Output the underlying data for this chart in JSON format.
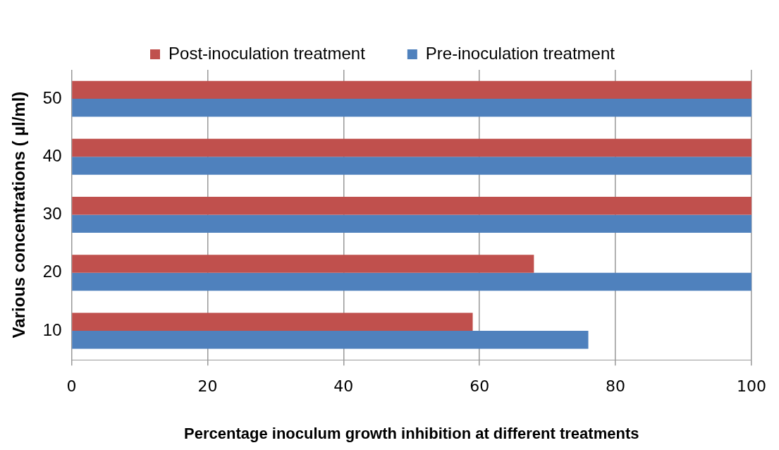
{
  "chart_data": {
    "type": "bar",
    "orientation": "horizontal",
    "xlabel": "Percentage inoculum growth inhibition at different treatments",
    "ylabel": "Various concentrations ( µl/ml)",
    "categories": [
      "50",
      "40",
      "30",
      "20",
      "10"
    ],
    "series": [
      {
        "name": "Post-inoculation treatment",
        "color": "#c0504d",
        "values": [
          100,
          100,
          100,
          68,
          59
        ]
      },
      {
        "name": "Pre-inoculation treatment",
        "color": "#4f81bd",
        "values": [
          100,
          100,
          100,
          100,
          76
        ]
      }
    ],
    "xlim": [
      0,
      100
    ],
    "xticks": [
      0,
      20,
      40,
      60,
      80,
      100
    ],
    "grid": "x",
    "legend": "top"
  }
}
